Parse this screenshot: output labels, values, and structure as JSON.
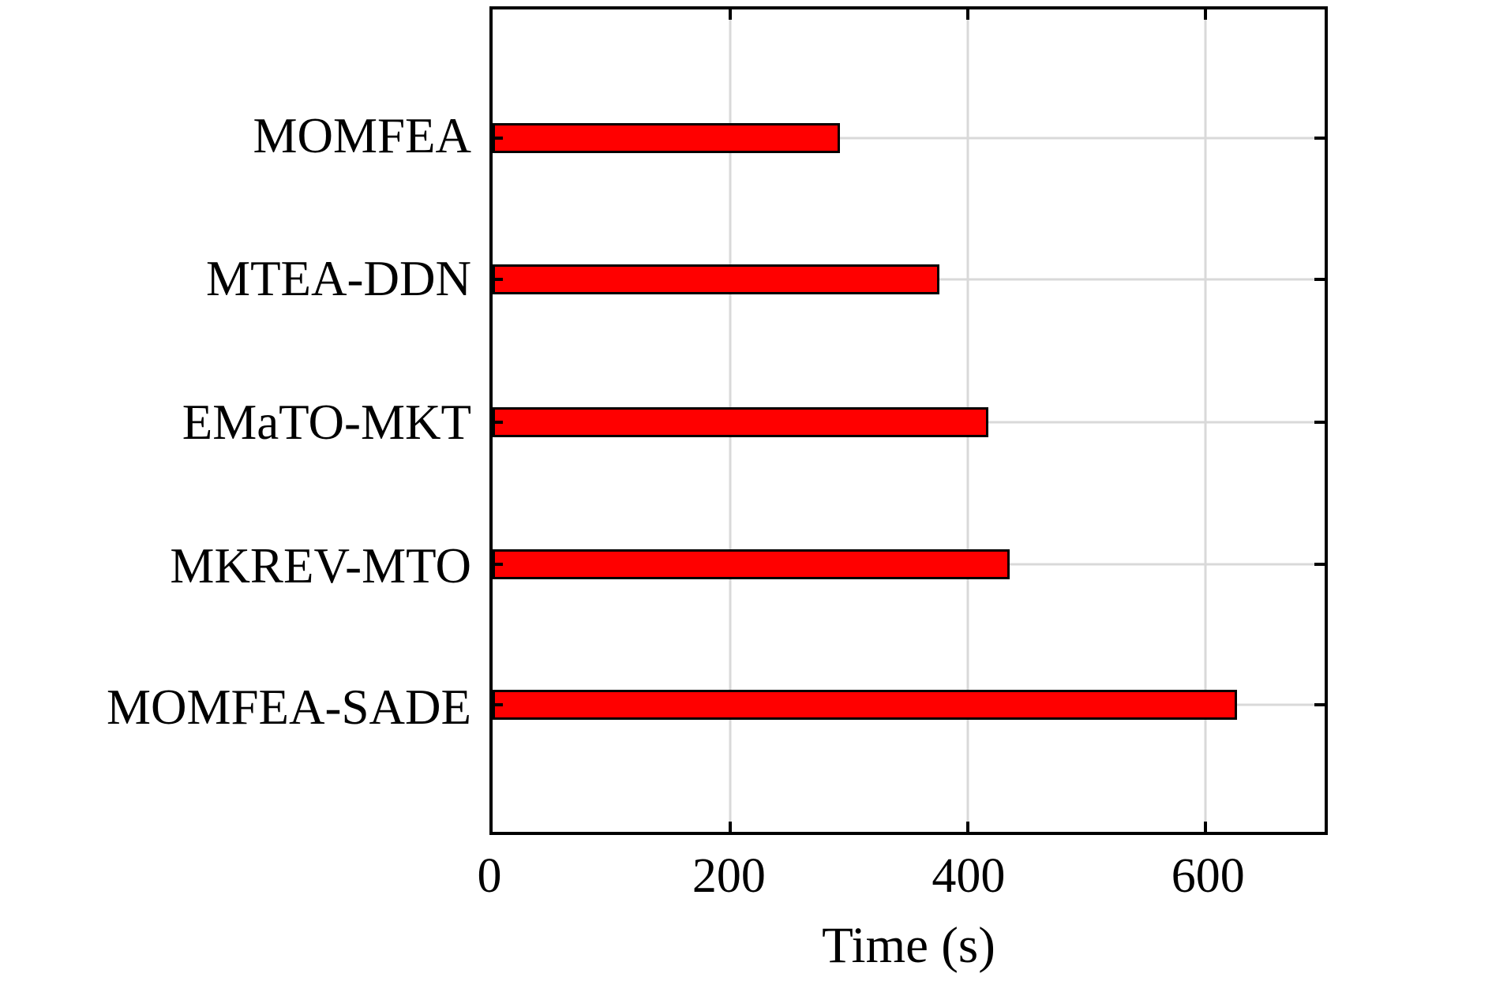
{
  "figure": {
    "background": "#ffffff"
  },
  "chart_data": {
    "type": "bar",
    "orientation": "horizontal",
    "title": "",
    "xlabel": "Time (s)",
    "ylabel": "",
    "categories": [
      "MOMFEA",
      "MTEA-DDN",
      "EMaTO-MKT",
      "MKREV-MTO",
      "MOMFEA-SADE"
    ],
    "values": [
      292,
      376,
      417,
      435,
      626
    ],
    "xlim": [
      0,
      700
    ],
    "xticks": [
      0,
      200,
      400,
      600
    ],
    "grid": true,
    "legend": "none",
    "colors": {
      "bar_fill": "#ff0000",
      "bar_border": "#000000",
      "gridline": "#d9d9d9",
      "axis": "#000000",
      "text": "#000000"
    }
  }
}
